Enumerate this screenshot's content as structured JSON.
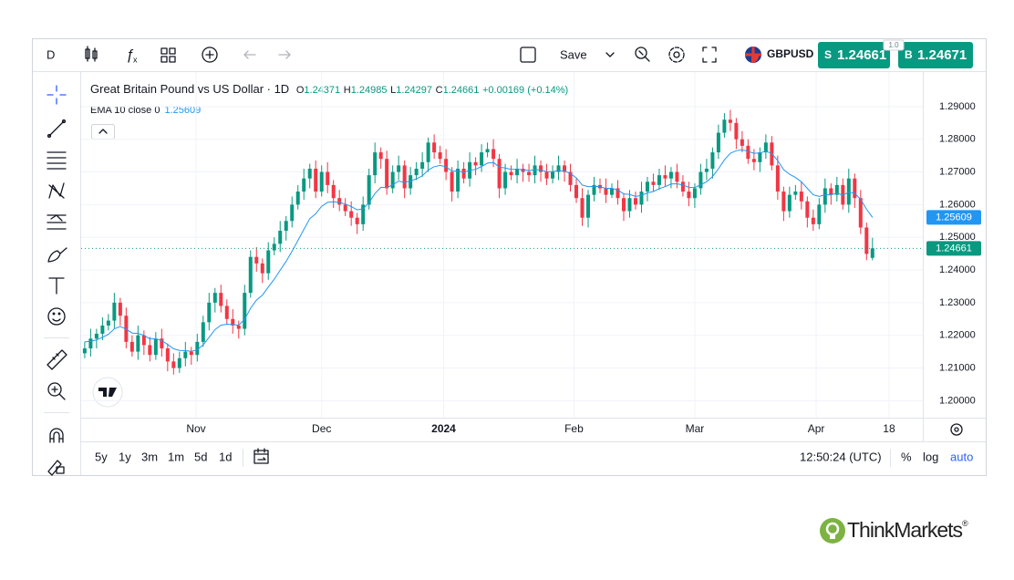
{
  "toolbar": {
    "interval": "D",
    "save": "Save",
    "symbol": "GBPUSD",
    "sell": {
      "label": "S",
      "price": "1.24661"
    },
    "spread": "1.0",
    "buy": {
      "label": "B",
      "price": "1.24671"
    }
  },
  "chart_data": {
    "type": "candlestick",
    "title": "Great Britain Pound vs US Dollar · 1D",
    "ohlc_legend": [
      {
        "label": "O",
        "value": 1.24371
      },
      {
        "label": "H",
        "value": 1.24985
      },
      {
        "label": "L",
        "value": 1.24297
      },
      {
        "label": "C",
        "value": 1.24661
      }
    ],
    "change": "+0.00169 (+0.14%)",
    "up_color": "#089981",
    "down_color": "#f23645",
    "ohlc": [
      [
        1.2145,
        1.218,
        1.213,
        1.216
      ],
      [
        1.216,
        1.222,
        1.2135,
        1.219
      ],
      [
        1.219,
        1.222,
        1.216,
        1.2205
      ],
      [
        1.2205,
        1.2255,
        1.2185,
        1.223
      ],
      [
        1.223,
        1.2265,
        1.2215,
        1.2245
      ],
      [
        1.2245,
        1.233,
        1.222,
        1.23
      ],
      [
        1.23,
        1.2315,
        1.223,
        1.226
      ],
      [
        1.226,
        1.2285,
        1.216,
        1.218
      ],
      [
        1.218,
        1.22,
        1.2135,
        1.215
      ],
      [
        1.215,
        1.223,
        1.2125,
        1.22
      ],
      [
        1.22,
        1.2215,
        1.214,
        1.217
      ],
      [
        1.217,
        1.2195,
        1.212,
        1.214
      ],
      [
        1.214,
        1.221,
        1.2125,
        1.219
      ],
      [
        1.219,
        1.222,
        1.2135,
        1.216
      ],
      [
        1.216,
        1.2175,
        1.209,
        1.212
      ],
      [
        1.212,
        1.2145,
        1.208,
        1.21
      ],
      [
        1.21,
        1.215,
        1.2085,
        1.213
      ],
      [
        1.213,
        1.218,
        1.2105,
        1.215
      ],
      [
        1.215,
        1.2165,
        1.211,
        1.214
      ],
      [
        1.214,
        1.2205,
        1.212,
        1.218
      ],
      [
        1.218,
        1.226,
        1.2165,
        1.224
      ],
      [
        1.224,
        1.233,
        1.2215,
        1.23
      ],
      [
        1.23,
        1.2345,
        1.227,
        1.233
      ],
      [
        1.233,
        1.2355,
        1.227,
        1.229
      ],
      [
        1.229,
        1.231,
        1.2235,
        1.225
      ],
      [
        1.225,
        1.228,
        1.2205,
        1.223
      ],
      [
        1.223,
        1.2245,
        1.219,
        1.222
      ],
      [
        1.222,
        1.2355,
        1.22,
        1.233
      ],
      [
        1.233,
        1.246,
        1.2315,
        1.244
      ],
      [
        1.244,
        1.247,
        1.2395,
        1.242
      ],
      [
        1.242,
        1.2435,
        1.236,
        1.239
      ],
      [
        1.239,
        1.2485,
        1.237,
        1.246
      ],
      [
        1.246,
        1.25,
        1.2445,
        1.248
      ],
      [
        1.248,
        1.255,
        1.2455,
        1.252
      ],
      [
        1.252,
        1.2565,
        1.249,
        1.255
      ],
      [
        1.255,
        1.2625,
        1.253,
        1.26
      ],
      [
        1.26,
        1.266,
        1.2585,
        1.264
      ],
      [
        1.264,
        1.271,
        1.2615,
        1.268
      ],
      [
        1.268,
        1.2725,
        1.265,
        1.271
      ],
      [
        1.271,
        1.2735,
        1.262,
        1.264
      ],
      [
        1.264,
        1.272,
        1.2625,
        1.27
      ],
      [
        1.27,
        1.273,
        1.2635,
        1.266
      ],
      [
        1.266,
        1.2675,
        1.259,
        1.262
      ],
      [
        1.262,
        1.2645,
        1.258,
        1.26
      ],
      [
        1.26,
        1.262,
        1.2565,
        1.258
      ],
      [
        1.258,
        1.261,
        1.2535,
        1.256
      ],
      [
        1.256,
        1.2575,
        1.251,
        1.254
      ],
      [
        1.254,
        1.2625,
        1.252,
        1.26
      ],
      [
        1.26,
        1.271,
        1.2585,
        1.269
      ],
      [
        1.269,
        1.279,
        1.2665,
        1.276
      ],
      [
        1.276,
        1.2775,
        1.271,
        1.274
      ],
      [
        1.274,
        1.2765,
        1.263,
        1.265
      ],
      [
        1.265,
        1.272,
        1.2635,
        1.27
      ],
      [
        1.27,
        1.275,
        1.2675,
        1.272
      ],
      [
        1.272,
        1.2735,
        1.262,
        1.265
      ],
      [
        1.265,
        1.2715,
        1.263,
        1.269
      ],
      [
        1.269,
        1.273,
        1.2675,
        1.271
      ],
      [
        1.271,
        1.276,
        1.2685,
        1.273
      ],
      [
        1.273,
        1.2805,
        1.27,
        1.279
      ],
      [
        1.279,
        1.2815,
        1.274,
        1.276
      ],
      [
        1.276,
        1.278,
        1.2725,
        1.274
      ],
      [
        1.274,
        1.277,
        1.2675,
        1.27
      ],
      [
        1.27,
        1.2715,
        1.261,
        1.264
      ],
      [
        1.264,
        1.2735,
        1.262,
        1.271
      ],
      [
        1.271,
        1.273,
        1.2665,
        1.268
      ],
      [
        1.268,
        1.276,
        1.2655,
        1.273
      ],
      [
        1.273,
        1.2745,
        1.269,
        1.272
      ],
      [
        1.272,
        1.2785,
        1.27,
        1.276
      ],
      [
        1.276,
        1.279,
        1.2745,
        1.277
      ],
      [
        1.277,
        1.28,
        1.2715,
        1.274
      ],
      [
        1.274,
        1.2755,
        1.262,
        1.265
      ],
      [
        1.265,
        1.2725,
        1.263,
        1.27
      ],
      [
        1.27,
        1.272,
        1.2675,
        1.269
      ],
      [
        1.269,
        1.274,
        1.2665,
        1.271
      ],
      [
        1.271,
        1.2725,
        1.267,
        1.27
      ],
      [
        1.27,
        1.2725,
        1.267,
        1.269
      ],
      [
        1.269,
        1.275,
        1.2665,
        1.272
      ],
      [
        1.272,
        1.2735,
        1.267,
        1.27
      ],
      [
        1.27,
        1.2725,
        1.266,
        1.268
      ],
      [
        1.268,
        1.272,
        1.2665,
        1.27
      ],
      [
        1.27,
        1.275,
        1.2675,
        1.272
      ],
      [
        1.272,
        1.2735,
        1.267,
        1.27
      ],
      [
        1.27,
        1.2725,
        1.264,
        1.266
      ],
      [
        1.266,
        1.268,
        1.2605,
        1.262
      ],
      [
        1.262,
        1.265,
        1.2535,
        1.256
      ],
      [
        1.256,
        1.2645,
        1.253,
        1.263
      ],
      [
        1.263,
        1.2685,
        1.261,
        1.266
      ],
      [
        1.266,
        1.268,
        1.2635,
        1.265
      ],
      [
        1.265,
        1.268,
        1.2605,
        1.263
      ],
      [
        1.263,
        1.2665,
        1.262,
        1.265
      ],
      [
        1.265,
        1.2675,
        1.26,
        1.262
      ],
      [
        1.262,
        1.2635,
        1.255,
        1.258
      ],
      [
        1.258,
        1.2645,
        1.256,
        1.262
      ],
      [
        1.262,
        1.264,
        1.2585,
        1.26
      ],
      [
        1.26,
        1.267,
        1.2575,
        1.264
      ],
      [
        1.264,
        1.2685,
        1.261,
        1.267
      ],
      [
        1.267,
        1.2695,
        1.264,
        1.266
      ],
      [
        1.266,
        1.271,
        1.2645,
        1.269
      ],
      [
        1.269,
        1.272,
        1.2655,
        1.268
      ],
      [
        1.268,
        1.2715,
        1.265,
        1.27
      ],
      [
        1.27,
        1.2725,
        1.265,
        1.267
      ],
      [
        1.267,
        1.269,
        1.2625,
        1.264
      ],
      [
        1.264,
        1.267,
        1.2595,
        1.262
      ],
      [
        1.262,
        1.2665,
        1.259,
        1.265
      ],
      [
        1.265,
        1.2725,
        1.263,
        1.27
      ],
      [
        1.27,
        1.274,
        1.2675,
        1.271
      ],
      [
        1.271,
        1.2775,
        1.268,
        1.276
      ],
      [
        1.276,
        1.2845,
        1.274,
        1.282
      ],
      [
        1.282,
        1.288,
        1.2805,
        1.286
      ],
      [
        1.286,
        1.289,
        1.2825,
        1.285
      ],
      [
        1.285,
        1.2865,
        1.277,
        1.28
      ],
      [
        1.28,
        1.2825,
        1.276,
        1.278
      ],
      [
        1.278,
        1.28,
        1.2725,
        1.274
      ],
      [
        1.274,
        1.277,
        1.2705,
        1.273
      ],
      [
        1.273,
        1.2775,
        1.27,
        1.276
      ],
      [
        1.276,
        1.2815,
        1.274,
        1.279
      ],
      [
        1.279,
        1.281,
        1.2705,
        1.272
      ],
      [
        1.272,
        1.275,
        1.2615,
        1.264
      ],
      [
        1.264,
        1.2655,
        1.255,
        1.258
      ],
      [
        1.258,
        1.2655,
        1.256,
        1.263
      ],
      [
        1.263,
        1.266,
        1.2615,
        1.264
      ],
      [
        1.264,
        1.267,
        1.2585,
        1.261
      ],
      [
        1.261,
        1.2625,
        1.253,
        1.256
      ],
      [
        1.256,
        1.2585,
        1.252,
        1.254
      ],
      [
        1.254,
        1.262,
        1.2525,
        1.26
      ],
      [
        1.26,
        1.268,
        1.2575,
        1.265
      ],
      [
        1.265,
        1.2665,
        1.26,
        1.263
      ],
      [
        1.263,
        1.2685,
        1.261,
        1.266
      ],
      [
        1.266,
        1.268,
        1.2585,
        1.26
      ],
      [
        1.26,
        1.271,
        1.2575,
        1.268
      ],
      [
        1.268,
        1.2695,
        1.259,
        1.262
      ],
      [
        1.262,
        1.2645,
        1.251,
        1.253
      ],
      [
        1.253,
        1.2545,
        1.243,
        1.24492
      ],
      [
        1.24371,
        1.24985,
        1.24297,
        1.24661
      ]
    ],
    "ema": {
      "name": "EMA 10 close 0",
      "color": "#2196f3",
      "values": [
        1.218,
        1.2182,
        1.2186,
        1.2194,
        1.2203,
        1.222,
        1.2227,
        1.2219,
        1.2207,
        1.2206,
        1.22,
        1.2189,
        1.2189,
        1.2184,
        1.2172,
        1.2159,
        1.2154,
        1.2153,
        1.2151,
        1.2156,
        1.2171,
        1.2194,
        1.2218,
        1.2231,
        1.2234,
        1.2233,
        1.2231,
        1.2249,
        1.2283,
        1.2308,
        1.2323,
        1.2348,
        1.2372,
        1.2399,
        1.2426,
        1.2457,
        1.249,
        1.2524,
        1.2557,
        1.2572,
        1.2595,
        1.2607,
        1.2609,
        1.2607,
        1.2602,
        1.2594,
        1.2584,
        1.2587,
        1.2606,
        1.2634,
        1.2653,
        1.2652,
        1.2661,
        1.2672,
        1.2668,
        1.2672,
        1.2679,
        1.2688,
        1.2706,
        1.2716,
        1.272,
        1.2716,
        1.2702,
        1.2703,
        1.2699,
        1.2705,
        1.2708,
        1.2717,
        1.2727,
        1.2729,
        1.2715,
        1.2712,
        1.2708,
        1.2708,
        1.2707,
        1.2704,
        1.2707,
        1.2706,
        1.2701,
        1.2701,
        1.2704,
        1.2703,
        1.2695,
        1.2682,
        1.266,
        1.2655,
        1.2656,
        1.2655,
        1.265,
        1.265,
        1.2645,
        1.2633,
        1.2631,
        1.2625,
        1.2628,
        1.2636,
        1.264,
        1.2649,
        1.2655,
        1.2663,
        1.2664,
        1.266,
        1.2653,
        1.2652,
        1.2661,
        1.267,
        1.2686,
        1.271,
        1.2737,
        1.2757,
        1.2765,
        1.2768,
        1.2763,
        1.2757,
        1.2758,
        1.2764,
        1.2756,
        1.2735,
        1.2707,
        1.2693,
        1.2683,
        1.267,
        1.265,
        1.263,
        1.2625,
        1.263,
        1.263,
        1.2635,
        1.2629,
        1.2638,
        1.2635,
        1.2616,
        1.2586,
        1.25609
      ]
    },
    "xlim": [
      -0.6,
      141.5
    ],
    "xticks": [
      {
        "value": 18.8,
        "label": "Nov"
      },
      {
        "value": 40,
        "label": "Dec"
      },
      {
        "value": 60.6,
        "label": "2024"
      },
      {
        "value": 82.6,
        "label": "Feb"
      },
      {
        "value": 103,
        "label": "Mar"
      },
      {
        "value": 123.5,
        "label": "Apr"
      },
      {
        "value": 135.8,
        "label": "18"
      }
    ],
    "ylim": [
      1.1948,
      1.2989
    ],
    "yticks": [
      {
        "value": 1.2,
        "label": "1.20000"
      },
      {
        "value": 1.21,
        "label": "1.21000"
      },
      {
        "value": 1.22,
        "label": "1.22000"
      },
      {
        "value": 1.23,
        "label": "1.23000"
      },
      {
        "value": 1.24,
        "label": "1.24000"
      },
      {
        "value": 1.25,
        "label": "1.25000"
      },
      {
        "value": 1.26,
        "label": "1.26000"
      },
      {
        "value": 1.27,
        "label": "1.27000"
      },
      {
        "value": 1.28,
        "label": "1.28000"
      },
      {
        "value": 1.29,
        "label": "1.29000"
      }
    ],
    "grid": true
  },
  "bottom_bar": {
    "ranges": [
      "5y",
      "1y",
      "3m",
      "1m",
      "5d",
      "1d"
    ],
    "clock": "12:50:24 (UTC)",
    "percent": "%",
    "log": "log",
    "auto": "auto"
  },
  "logo": {
    "name": "ThinkMarkets",
    "mark": "®"
  }
}
